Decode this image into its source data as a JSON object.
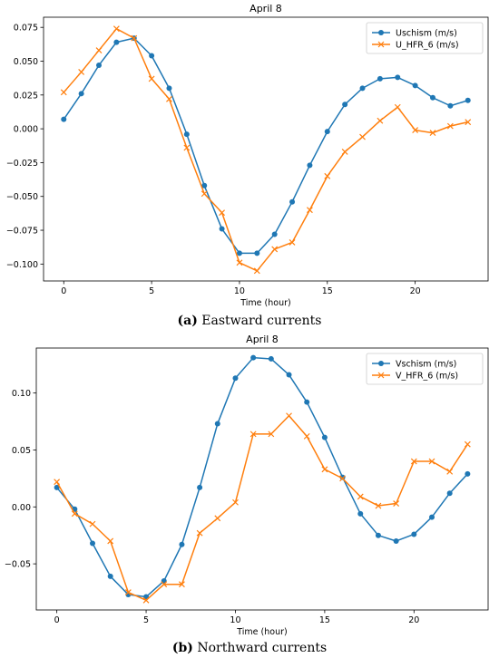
{
  "chart_data": [
    {
      "type": "line",
      "title": "April 8",
      "xlabel": "Time (hour)",
      "ylabel": "",
      "xlim": [
        -1.15,
        24.15
      ],
      "ylim": [
        -0.1125,
        0.0825
      ],
      "xticks": [
        0,
        5,
        10,
        15,
        20
      ],
      "xtick_labels": [
        "0",
        "5",
        "10",
        "15",
        "20"
      ],
      "yticks": [
        -0.1,
        -0.075,
        -0.05,
        -0.025,
        0,
        0.025,
        0.05,
        0.075
      ],
      "ytick_labels": [
        "−0.100",
        "−0.075",
        "−0.050",
        "−0.025",
        "0.000",
        "0.025",
        "0.050",
        "0.075"
      ],
      "legend_position": "top-right",
      "grid": false,
      "x": [
        0,
        1,
        2,
        3,
        4,
        5,
        6,
        7,
        8,
        9,
        10,
        11,
        12,
        13,
        14,
        15,
        16,
        17,
        18,
        19,
        20,
        21,
        22,
        23
      ],
      "series": [
        {
          "name": "Uschism (m/s)",
          "color": "#1f77b4",
          "marker": "circle",
          "values": [
            0.007,
            0.026,
            0.047,
            0.064,
            0.067,
            0.054,
            0.03,
            -0.004,
            -0.042,
            -0.074,
            -0.092,
            -0.092,
            -0.078,
            -0.054,
            -0.027,
            -0.002,
            0.018,
            0.03,
            0.037,
            0.038,
            0.032,
            0.023,
            0.017,
            0.021
          ]
        },
        {
          "name": "U_HFR_6 (m/s)",
          "color": "#ff7f0e",
          "marker": "x",
          "values": [
            0.027,
            0.042,
            0.058,
            0.074,
            0.067,
            0.037,
            0.022,
            -0.014,
            -0.048,
            -0.062,
            -0.099,
            -0.105,
            -0.089,
            -0.084,
            -0.06,
            -0.035,
            -0.017,
            -0.006,
            0.006,
            0.016,
            -0.001,
            -0.003,
            0.002,
            0.005
          ]
        }
      ]
    },
    {
      "type": "line",
      "title": "April 8",
      "xlabel": "Time (hour)",
      "ylabel": "",
      "xlim": [
        -1.15,
        24.15
      ],
      "ylim": [
        -0.0905,
        0.1395
      ],
      "xticks": [
        0,
        5,
        10,
        15,
        20
      ],
      "xtick_labels": [
        "0",
        "5",
        "10",
        "15",
        "20"
      ],
      "yticks": [
        -0.05,
        0,
        0.05,
        0.1
      ],
      "ytick_labels": [
        "−0.05",
        "0.00",
        "0.05",
        "0.10"
      ],
      "legend_position": "top-right",
      "grid": false,
      "x": [
        0,
        1,
        2,
        3,
        4,
        5,
        6,
        7,
        8,
        9,
        10,
        11,
        12,
        13,
        14,
        15,
        16,
        17,
        18,
        19,
        20,
        21,
        22,
        23
      ],
      "series": [
        {
          "name": "Vschism (m/s)",
          "color": "#1f77b4",
          "marker": "circle",
          "values": [
            0.017,
            -0.002,
            -0.032,
            -0.061,
            -0.077,
            -0.079,
            -0.065,
            -0.033,
            0.017,
            0.073,
            0.113,
            0.131,
            0.13,
            0.116,
            0.092,
            0.061,
            0.026,
            -0.006,
            -0.025,
            -0.03,
            -0.024,
            -0.009,
            0.012,
            0.029
          ]
        },
        {
          "name": "V_HFR_6 (m/s)",
          "color": "#ff7f0e",
          "marker": "x",
          "values": [
            0.022,
            -0.006,
            -0.015,
            -0.03,
            -0.075,
            -0.082,
            -0.068,
            -0.068,
            -0.023,
            -0.01,
            0.004,
            0.064,
            0.064,
            0.08,
            0.062,
            0.033,
            0.025,
            0.009,
            0.001,
            0.003,
            0.04,
            0.04,
            0.031,
            0.055
          ]
        }
      ]
    }
  ],
  "captions": [
    {
      "label": "(a)",
      "text": " Eastward currents"
    },
    {
      "label": "(b)",
      "text": " Northward currents"
    }
  ]
}
